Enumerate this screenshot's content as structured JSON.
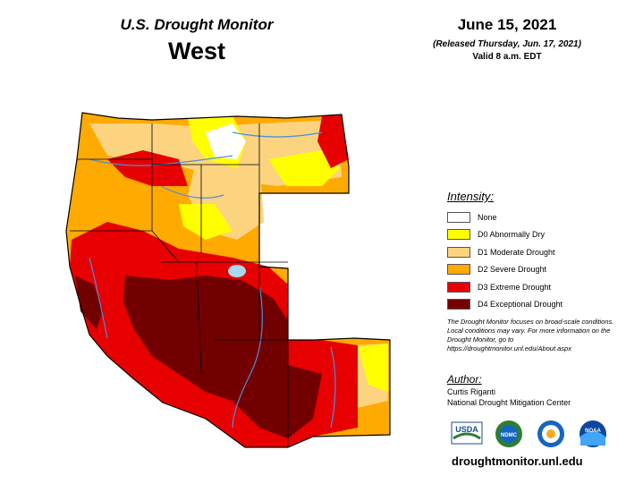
{
  "header": {
    "subtitle": "U.S. Drought Monitor",
    "region": "West",
    "date": "June 15, 2021",
    "released": "(Released Thursday, Jun. 17, 2021)",
    "valid": "Valid 8 a.m. EDT"
  },
  "legend": {
    "title": "Intensity:",
    "items": [
      {
        "label": "None",
        "color": "#ffffff"
      },
      {
        "label": "D0 Abnormally Dry",
        "color": "#ffff00"
      },
      {
        "label": "D1 Moderate Drought",
        "color": "#fcd37f"
      },
      {
        "label": "D2 Severe Drought",
        "color": "#ffaa00"
      },
      {
        "label": "D3 Extreme Drought",
        "color": "#e60000"
      },
      {
        "label": "D4 Exceptional Drought",
        "color": "#730000"
      }
    ]
  },
  "note": "The Drought Monitor focuses on broad-scale conditions. Local conditions may vary. For more information on the Drought Monitor, go to https://droughtmonitor.unl.edu/About.aspx",
  "author": {
    "heading": "Author:",
    "name": "Curtis Riganti",
    "org": "National Drought Mitigation Center"
  },
  "logos": [
    {
      "name": "usda-logo",
      "text": "USDA"
    },
    {
      "name": "ndmc-logo",
      "text": "NDMC"
    },
    {
      "name": "doc-logo",
      "text": ""
    },
    {
      "name": "noaa-logo",
      "text": "NOAA"
    }
  ],
  "footer": {
    "site": "droughtmonitor.unl.edu"
  },
  "map": {
    "colors": {
      "none": "#ffffff",
      "d0": "#ffff00",
      "d1": "#fcd37f",
      "d2": "#ffaa00",
      "d3": "#e60000",
      "d4": "#730000",
      "water": "#a8d8f0",
      "river": "#4a90d9",
      "boundary": "#000000"
    }
  }
}
